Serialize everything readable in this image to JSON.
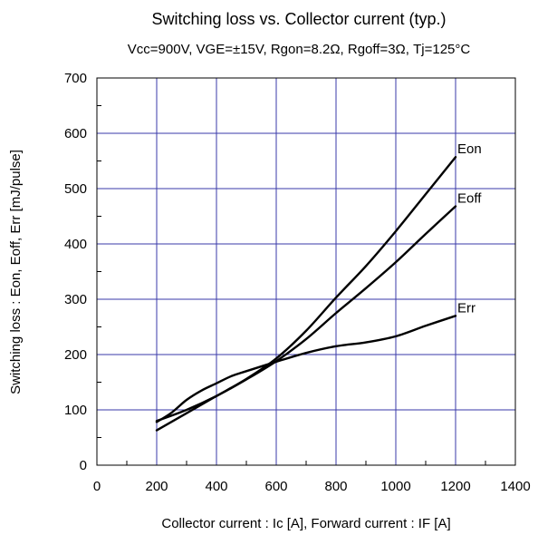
{
  "colors": {
    "grid": "#3a3aa8",
    "curve": "#000000",
    "background": "#ffffff"
  },
  "chart_data": {
    "type": "line",
    "title": "Switching loss vs. Collector current (typ.)",
    "subtitle": "Vcc=900V, VGE=±15V, Rgon=8.2Ω, Rgoff=3Ω, Tj=125°C",
    "xlabel": "Collector current : Ic [A], Forward current : IF [A]",
    "ylabel": "Switching loss : Eon, Eoff, Err [mJ/pulse]",
    "xlim": [
      0,
      1400
    ],
    "ylim": [
      0,
      700
    ],
    "xticks": [
      0,
      200,
      400,
      600,
      800,
      1000,
      1200,
      1400
    ],
    "yticks": [
      0,
      100,
      200,
      300,
      400,
      500,
      600,
      700
    ],
    "grid": true,
    "series": [
      {
        "name": "Eon",
        "x": [
          200,
          300,
          400,
          500,
          600,
          700,
          800,
          900,
          1000,
          1100,
          1200
        ],
        "y": [
          63,
          94,
          125,
          156,
          193,
          243,
          303,
          360,
          423,
          490,
          557
        ]
      },
      {
        "name": "Eoff",
        "x": [
          200,
          300,
          400,
          500,
          600,
          700,
          800,
          900,
          1000,
          1100,
          1200
        ],
        "y": [
          80,
          100,
          125,
          155,
          188,
          228,
          275,
          320,
          367,
          418,
          468
        ]
      },
      {
        "name": "Err",
        "x": [
          200,
          250,
          300,
          350,
          400,
          450,
          500,
          600,
          700,
          800,
          900,
          1000,
          1100,
          1200
        ],
        "y": [
          78,
          95,
          118,
          135,
          148,
          161,
          170,
          187,
          203,
          215,
          222,
          233,
          252,
          270
        ]
      }
    ]
  }
}
